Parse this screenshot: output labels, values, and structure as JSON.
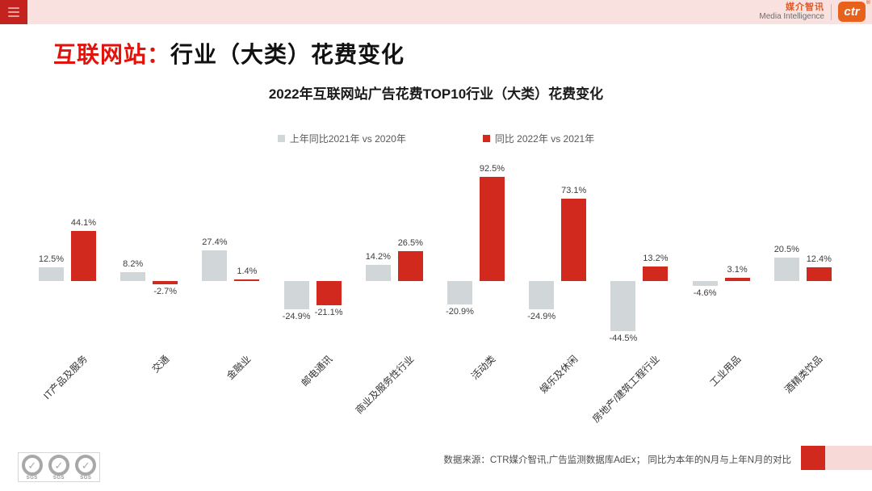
{
  "topbar": {
    "brand_cn": "媒介智讯",
    "brand_en": "Media Intelligence",
    "badge": "ctr",
    "badge_reg": "®"
  },
  "page_title": {
    "highlight": "互联网站：",
    "rest": "行业（大类）花费变化"
  },
  "chart_data": {
    "type": "bar",
    "title": "2022年互联网站广告花费TOP10行业（大类）花费变化",
    "categories": [
      "IT产品及服务",
      "交通",
      "金融业",
      "邮电通讯",
      "商业及服务性行业",
      "活动类",
      "娱乐及休闲",
      "房地产/建筑工程行业",
      "工业用品",
      "酒精类饮品"
    ],
    "series": [
      {
        "name": "上年同比2021年  vs  2020年",
        "color": "#D1D7D9",
        "values": [
          12.5,
          8.2,
          27.4,
          -24.9,
          14.2,
          -20.9,
          -24.9,
          -44.5,
          -4.6,
          20.5
        ]
      },
      {
        "name": "同比 2022年  vs  2021年",
        "color": "#D2291F",
        "values": [
          44.1,
          -2.7,
          1.4,
          -21.1,
          26.5,
          92.5,
          73.1,
          13.2,
          3.1,
          12.4
        ]
      }
    ],
    "value_suffix": "%",
    "legend_position": "top",
    "grid": false,
    "ylim": [
      -50,
      100
    ]
  },
  "footer": {
    "source": "数据来源：CTR媒介智讯,广告监测数据库AdEx；  同比为本年的N月与上年N月的对比",
    "sgs_label": "SGS",
    "sgs_check": "✓"
  },
  "colors": {
    "accent_red": "#D2291F",
    "bar_gray": "#D1D7D9",
    "topbar_pink": "#F9E1DF",
    "badge_orange": "#E8611C",
    "title_red": "#E3120B"
  }
}
